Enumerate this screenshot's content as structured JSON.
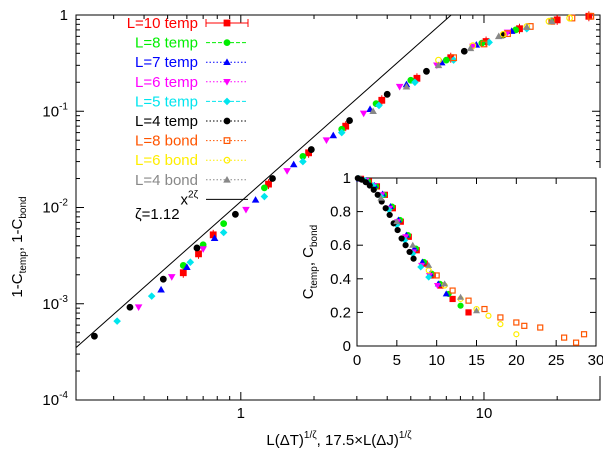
{
  "chart_data": [
    {
      "id": "main",
      "type": "scatter",
      "xscale": "log",
      "yscale": "log",
      "xlim": [
        0.21,
        30
      ],
      "ylim": [
        0.0001,
        1
      ],
      "xlabel": "L(ΔT)^{1/ζ}, 17.5×L(ΔJ)^{1/ζ}",
      "xlabel_parts": {
        "main1": "L(ΔT)",
        "sup1": "1/ζ",
        "main2": ", 17.5×L(ΔJ)",
        "sup2": "1/ζ"
      },
      "ylabel_parts": {
        "t1": "1-C",
        "s1": "temp",
        "t2": ", 1-C",
        "s2": "bond"
      },
      "x_ticks": [
        {
          "value": 1,
          "label": "1"
        },
        {
          "value": 10,
          "label": "10"
        }
      ],
      "y_ticks": [
        {
          "value": 0.0001,
          "base": "10",
          "exp": "-4"
        },
        {
          "value": 0.001,
          "base": "10",
          "exp": "-3"
        },
        {
          "value": 0.01,
          "base": "10",
          "exp": "-2"
        },
        {
          "value": 0.1,
          "base": "10",
          "exp": "-1"
        },
        {
          "value": 1,
          "base": "1",
          "exp": ""
        }
      ],
      "legend_position": "top-left",
      "series": [
        {
          "name": "L=10 temp",
          "color": "#ff0000",
          "marker": "square-filled",
          "dash": "solid",
          "errorbars": true,
          "x": [
            0.58,
            0.67,
            0.77,
            1.3,
            1.9,
            2.7,
            3.8,
            5.3,
            7.3,
            10.2,
            14,
            20,
            27
          ],
          "y": [
            0.0021,
            0.0033,
            0.0052,
            0.0175,
            0.037,
            0.07,
            0.13,
            0.22,
            0.36,
            0.53,
            0.72,
            0.89,
            0.97
          ]
        },
        {
          "name": "L=8 temp",
          "color": "#00ee00",
          "marker": "circle-filled",
          "dash": "dash",
          "x": [
            0.58,
            0.7,
            0.85,
            1.25,
            1.8,
            2.6,
            3.6,
            5.0,
            7.0,
            9.8,
            13.5,
            19
          ],
          "y": [
            0.0025,
            0.0041,
            0.0068,
            0.016,
            0.034,
            0.065,
            0.12,
            0.21,
            0.34,
            0.51,
            0.7,
            0.87
          ]
        },
        {
          "name": "L=7 temp",
          "color": "#0000ff",
          "marker": "triangle-up-filled",
          "dash": "dot",
          "x": [
            0.47,
            0.6,
            0.78,
            1.15,
            1.65,
            2.4,
            3.4,
            4.8,
            6.7,
            9.3,
            13
          ],
          "y": [
            0.0014,
            0.0024,
            0.0048,
            0.012,
            0.028,
            0.056,
            0.105,
            0.19,
            0.32,
            0.49,
            0.68
          ]
        },
        {
          "name": "L=6 temp",
          "color": "#ff00ff",
          "marker": "triangle-down-filled",
          "dash": "dot",
          "x": [
            0.38,
            0.52,
            0.7,
            1.05,
            1.55,
            2.25,
            3.2,
            4.5,
            6.4,
            9.0,
            12.5
          ],
          "y": [
            0.00092,
            0.0019,
            0.0037,
            0.0095,
            0.024,
            0.05,
            0.095,
            0.18,
            0.3,
            0.47,
            0.66
          ]
        },
        {
          "name": "L=5 temp",
          "color": "#00e5ee",
          "marker": "diamond-filled",
          "dash": "dash",
          "x": [
            0.31,
            0.43,
            0.62,
            0.85,
            1.25,
            1.8,
            2.6,
            3.7,
            5.2,
            7.5,
            10.5,
            15
          ],
          "y": [
            0.00066,
            0.0012,
            0.0027,
            0.0055,
            0.013,
            0.03,
            0.06,
            0.115,
            0.2,
            0.34,
            0.52,
            0.72
          ]
        },
        {
          "name": "L=4 temp",
          "color": "#000000",
          "marker": "circle-filled",
          "dash": "dot",
          "x": [
            0.25,
            0.35,
            0.48,
            0.66,
            0.95,
            1.35,
            1.95,
            2.8,
            4.0,
            5.8,
            8.3,
            12
          ],
          "y": [
            0.00046,
            0.00092,
            0.0018,
            0.0038,
            0.0085,
            0.02,
            0.04,
            0.08,
            0.15,
            0.26,
            0.42,
            0.62
          ]
        },
        {
          "name": "L=8 bond",
          "color": "#ff5500",
          "marker": "square-open",
          "dash": "dot",
          "x": [
            7.5,
            10,
            12.5,
            15.5,
            19,
            23,
            27.5
          ],
          "y": [
            0.36,
            0.5,
            0.64,
            0.76,
            0.86,
            0.93,
            0.97
          ]
        },
        {
          "name": "L=6 bond",
          "color": "#ffee00",
          "marker": "circle-open",
          "dash": "dot",
          "x": [
            6.5,
            9,
            12,
            15,
            18.5,
            22.5
          ],
          "y": [
            0.34,
            0.48,
            0.63,
            0.76,
            0.86,
            0.93
          ]
        },
        {
          "name": "L=4 bond",
          "color": "#888888",
          "marker": "triangle-up-filled",
          "dash": "dot",
          "x": [
            3.5,
            4.8,
            6.5,
            8.8,
            11.5,
            15,
            19
          ],
          "y": [
            0.1,
            0.18,
            0.3,
            0.45,
            0.6,
            0.75,
            0.86
          ]
        },
        {
          "name": "x^{2ζ}",
          "label_base": "x",
          "label_sup": "2ζ",
          "color": "#000000",
          "type": "line",
          "exponent": 2.24
        }
      ],
      "annotations": [
        {
          "text": "ζ=1.12"
        }
      ]
    },
    {
      "id": "inset",
      "type": "scatter",
      "xlim": [
        0,
        30
      ],
      "ylim": [
        0,
        1
      ],
      "ylabel_parts": {
        "t1": "C",
        "s1": "temp",
        "t2": ", C",
        "s2": "bond"
      },
      "x_ticks": [
        0,
        5,
        10,
        15,
        20,
        25,
        30
      ],
      "y_ticks": [
        0,
        0.2,
        0.4,
        0.6,
        0.8,
        1
      ],
      "y_tick_labels": [
        "0",
        "0.2",
        "0.4",
        "0.6",
        "0.8",
        "1"
      ],
      "series": [
        {
          "name": "L=10 temp",
          "color": "#ff0000",
          "marker": "square-filled",
          "x": [
            0.5,
            1.5,
            2.5,
            3.5,
            4.5,
            5.5,
            6.5,
            7.5,
            8.5,
            9.5,
            10.5,
            12,
            14
          ],
          "y": [
            0.995,
            0.98,
            0.95,
            0.9,
            0.82,
            0.74,
            0.65,
            0.57,
            0.49,
            0.42,
            0.36,
            0.28,
            0.2
          ]
        },
        {
          "name": "L=8 temp",
          "color": "#00ee00",
          "marker": "circle-filled",
          "x": [
            0.4,
            1.4,
            2.4,
            3.4,
            4.4,
            5.4,
            6.4,
            7.4,
            8.4,
            9.4,
            10.4,
            11.5,
            13
          ],
          "y": [
            0.995,
            0.98,
            0.95,
            0.9,
            0.83,
            0.75,
            0.66,
            0.58,
            0.5,
            0.43,
            0.37,
            0.31,
            0.24
          ]
        },
        {
          "name": "L=7 temp",
          "color": "#0000ff",
          "marker": "triangle-up-filled",
          "x": [
            0.3,
            1.2,
            2.2,
            3.2,
            4.2,
            5.2,
            6.2,
            7.2,
            8.2,
            9.2,
            10.2,
            11.2
          ],
          "y": [
            0.995,
            0.985,
            0.955,
            0.905,
            0.83,
            0.75,
            0.66,
            0.58,
            0.5,
            0.43,
            0.37,
            0.31
          ]
        },
        {
          "name": "L=6 temp",
          "color": "#ff00ff",
          "marker": "triangle-down-filled",
          "x": [
            0.3,
            1.1,
            2.1,
            3.1,
            4.1,
            5.1,
            6.1,
            7.1,
            8.1,
            9.1,
            10.1
          ],
          "y": [
            0.995,
            0.985,
            0.955,
            0.9,
            0.82,
            0.74,
            0.65,
            0.56,
            0.48,
            0.42,
            0.36
          ]
        },
        {
          "name": "L=5 temp",
          "color": "#00e5ee",
          "marker": "diamond-filled",
          "x": [
            0.2,
            1.0,
            2.0,
            3.0,
            4.0,
            5.0,
            6.0,
            7.0,
            8.0,
            9.0
          ],
          "y": [
            0.998,
            0.985,
            0.955,
            0.89,
            0.81,
            0.72,
            0.63,
            0.55,
            0.47,
            0.41
          ]
        },
        {
          "name": "L=4 temp",
          "color": "#000000",
          "marker": "circle-filled",
          "x": [
            0.1,
            0.6,
            1.1,
            1.6,
            2.1,
            2.6,
            3.1,
            3.6,
            4.1,
            4.6,
            5.1,
            5.6,
            6.1,
            6.6,
            7.1
          ],
          "y": [
            0.999,
            0.99,
            0.975,
            0.955,
            0.93,
            0.9,
            0.86,
            0.82,
            0.78,
            0.73,
            0.69,
            0.64,
            0.6,
            0.56,
            0.52
          ]
        },
        {
          "name": "L=8 bond",
          "color": "#ff5500",
          "marker": "square-open",
          "x": [
            10,
            12,
            14,
            16,
            18,
            20,
            21,
            23,
            26,
            27.5,
            28.5
          ],
          "y": [
            0.42,
            0.33,
            0.27,
            0.22,
            0.17,
            0.14,
            0.12,
            0.11,
            0.05,
            0.02,
            0.07
          ]
        },
        {
          "name": "L=6 bond",
          "color": "#ffee00",
          "marker": "circle-open",
          "x": [
            9,
            11,
            13,
            15,
            16.5,
            18,
            20
          ],
          "y": [
            0.45,
            0.36,
            0.28,
            0.22,
            0.18,
            0.13,
            0.07
          ]
        },
        {
          "name": "L=4 bond",
          "color": "#888888",
          "marker": "triangle-up-filled",
          "x": [
            3,
            5,
            7,
            9,
            11,
            13,
            15
          ],
          "y": [
            0.88,
            0.74,
            0.6,
            0.48,
            0.37,
            0.29,
            0.21
          ]
        }
      ]
    }
  ]
}
